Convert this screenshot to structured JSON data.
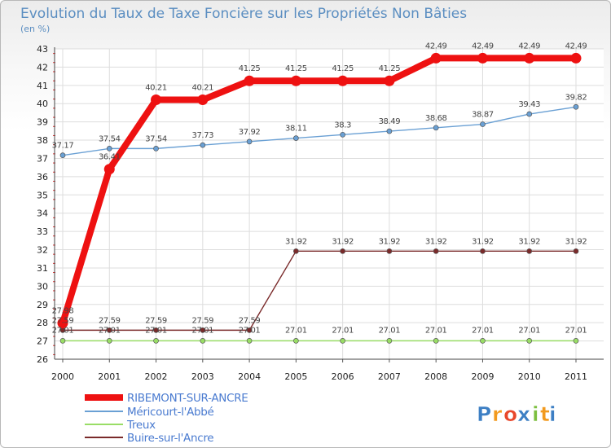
{
  "chart_data": {
    "type": "line",
    "title": "Evolution du Taux de Taxe Foncière sur les Propriétés Non Bâties",
    "unit_label": "(en %)",
    "xlabel": "",
    "ylabel": "",
    "x": [
      "2000",
      "2001",
      "2002",
      "2003",
      "2004",
      "2005",
      "2006",
      "2007",
      "2008",
      "2009",
      "2010",
      "2011"
    ],
    "ylim": [
      26,
      43
    ],
    "yticks": [
      26,
      27,
      28,
      29,
      30,
      31,
      32,
      33,
      34,
      35,
      36,
      37,
      38,
      39,
      40,
      41,
      42,
      43
    ],
    "grid": true,
    "legend_position": "bottom-left",
    "series": [
      {
        "name": "RIBEMONT-SUR-ANCRE",
        "color": "#ee1111",
        "values": [
          27.98,
          36.41,
          40.21,
          40.21,
          41.25,
          41.25,
          41.25,
          41.25,
          42.49,
          42.49,
          42.49,
          42.49
        ],
        "labels": [
          "27.98",
          "36.41",
          "40.21",
          "40.21",
          "41.25",
          "41.25",
          "41.25",
          "41.25",
          "42.49",
          "42.49",
          "42.49",
          "42.49"
        ]
      },
      {
        "name": "Méricourt-l'Abbé",
        "color": "#6aa0d4",
        "values": [
          37.17,
          37.54,
          37.54,
          37.73,
          37.92,
          38.11,
          38.3,
          38.49,
          38.68,
          38.87,
          39.43,
          39.82
        ],
        "labels": [
          "37.17",
          "37.54",
          "37.54",
          "37.73",
          "37.92",
          "38.11",
          "38.3",
          "38.49",
          "38.68",
          "38.87",
          "39.43",
          "39.82"
        ]
      },
      {
        "name": "Treux",
        "color": "#99dd66",
        "values": [
          27.01,
          27.01,
          27.01,
          27.01,
          27.01,
          27.01,
          27.01,
          27.01,
          27.01,
          27.01,
          27.01,
          27.01
        ],
        "labels": [
          "27.01",
          "27.01",
          "27.01",
          "27.01",
          "27.01",
          "27.01",
          "27.01",
          "27.01",
          "27.01",
          "27.01",
          "27.01",
          "27.01"
        ]
      },
      {
        "name": "Buire-sur-l'Ancre",
        "color": "#7a2a2a",
        "values": [
          27.59,
          27.59,
          27.59,
          27.59,
          27.59,
          31.92,
          31.92,
          31.92,
          31.92,
          31.92,
          31.92,
          31.92
        ],
        "labels": [
          "27.59",
          "27.59",
          "27.59",
          "27.59",
          "27.59",
          "31.92",
          "31.92",
          "31.92",
          "31.92",
          "31.92",
          "31.92",
          "31.92"
        ]
      }
    ]
  },
  "logo": {
    "letters": [
      "P",
      "r",
      "o",
      "x",
      "i",
      "t",
      "i"
    ],
    "colors": [
      "#3d7fc4",
      "#f29a1e",
      "#e8472b",
      "#3d7fc4",
      "#7cbf3f",
      "#f29a1e",
      "#3d7fc4"
    ]
  }
}
